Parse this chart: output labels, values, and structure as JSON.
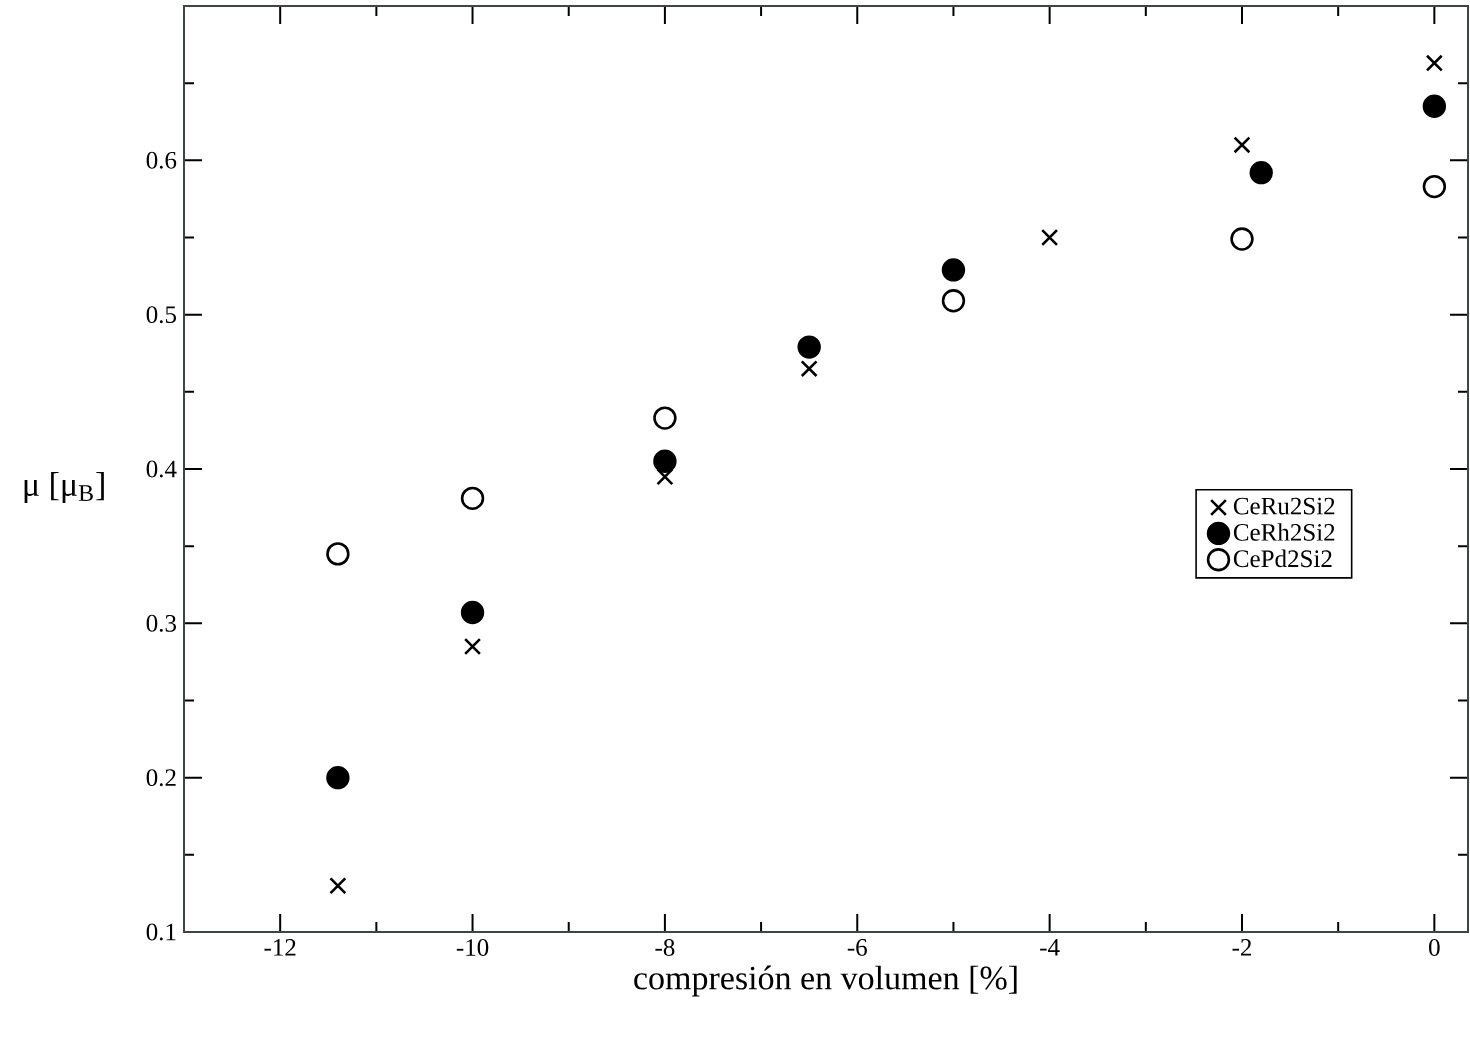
{
  "chart_data": {
    "type": "scatter",
    "xlabel": "compresión en volumen [%]",
    "ylabel": "μ [μ$_{B}$]",
    "xlim": [
      -13,
      0.35
    ],
    "ylim": [
      0.1,
      0.7
    ],
    "xticks": [
      -12,
      {
        "value": -11,
        "label": null
      },
      -10,
      {
        "value": -9,
        "label": null
      },
      -8,
      {
        "value": -7,
        "label": null
      },
      -6,
      {
        "value": -5,
        "label": null
      },
      -4,
      {
        "value": -3,
        "label": null
      },
      -2,
      {
        "value": -1,
        "label": null
      },
      0
    ],
    "yticks": [
      0.1,
      {
        "value": 0.15,
        "label": null
      },
      0.2,
      {
        "value": 0.25,
        "label": null
      },
      0.3,
      {
        "value": 0.35,
        "label": null
      },
      0.4,
      {
        "value": 0.45,
        "label": null
      },
      0.5,
      {
        "value": 0.55,
        "label": null
      },
      0.6,
      {
        "value": 0.65,
        "label": null
      }
    ],
    "grid": false,
    "legend": "right",
    "series": [
      {
        "name": "CeRu2Si2",
        "color": "#000000",
        "marker": "cross",
        "x": [
          -11.4,
          -10,
          -8,
          -6.5,
          -4,
          -2,
          0
        ],
        "values": [
          0.13,
          0.285,
          0.395,
          0.465,
          0.55,
          0.61,
          0.663
        ]
      },
      {
        "name": "CeRh2Si2",
        "color": "#000000",
        "marker": "circle",
        "x": [
          -11.4,
          -10,
          -8,
          -6.5,
          -5,
          -1.8,
          0
        ],
        "values": [
          0.2,
          0.307,
          0.405,
          0.479,
          0.529,
          0.592,
          0.635
        ]
      },
      {
        "name": "CePd2Si2",
        "color": "#ffffff",
        "marker": "circle",
        "x": [
          -11.4,
          -10,
          -8,
          -5,
          -2,
          0
        ],
        "values": [
          0.345,
          0.381,
          0.433,
          0.509,
          0.549,
          0.583
        ]
      }
    ]
  }
}
